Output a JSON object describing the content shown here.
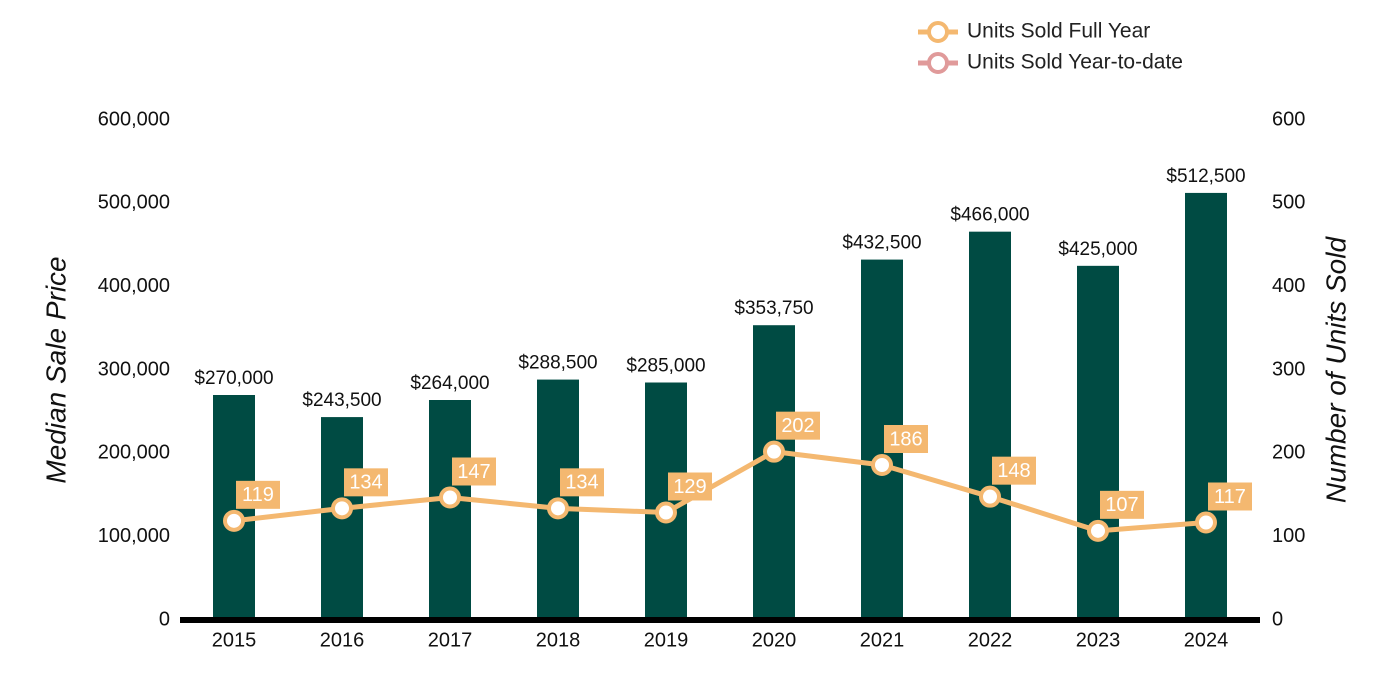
{
  "chart_data": {
    "type": "bar",
    "categories": [
      "2015",
      "2016",
      "2017",
      "2018",
      "2019",
      "2020",
      "2021",
      "2022",
      "2023",
      "2024"
    ],
    "series": [
      {
        "name": "Median Sale Price",
        "type": "bar",
        "axis": "y",
        "color": "#004b43",
        "values": [
          270000,
          243500,
          264000,
          288500,
          285000,
          353750,
          432500,
          466000,
          425000,
          512500
        ],
        "value_labels": [
          "$270,000",
          "$243,500",
          "$264,000",
          "$288,500",
          "$285,000",
          "$353,750",
          "$432,500",
          "$466,000",
          "$425,000",
          "$512,500"
        ]
      },
      {
        "name": "Units Sold Full Year",
        "type": "line",
        "axis": "y2",
        "color": "#f4b870",
        "values": [
          119,
          134,
          147,
          134,
          129,
          202,
          186,
          148,
          107,
          117
        ]
      },
      {
        "name": "Units Sold Year-to-date",
        "type": "line",
        "axis": "y2",
        "color": "#e09a9a",
        "values": [
          null,
          null,
          null,
          null,
          null,
          null,
          null,
          null,
          null,
          null
        ]
      }
    ],
    "ylabel": "Median Sale Price",
    "y2label": "Number of Units Sold",
    "ylim": [
      0,
      600000
    ],
    "yticks": [
      0,
      {
        "value": 100000,
        "label": "100,000"
      },
      {
        "value": 200000,
        "label": "200,000"
      },
      {
        "value": 300000,
        "label": "300,000"
      },
      {
        "value": 400000,
        "label": "400,000"
      },
      {
        "value": 500000,
        "label": "500,000"
      },
      {
        "value": 600000,
        "label": "600,000"
      }
    ],
    "y2lim": [
      0,
      600
    ],
    "y2ticks": [
      0,
      100,
      200,
      300,
      400,
      500,
      600
    ],
    "grid": false,
    "legend": "top-right"
  }
}
